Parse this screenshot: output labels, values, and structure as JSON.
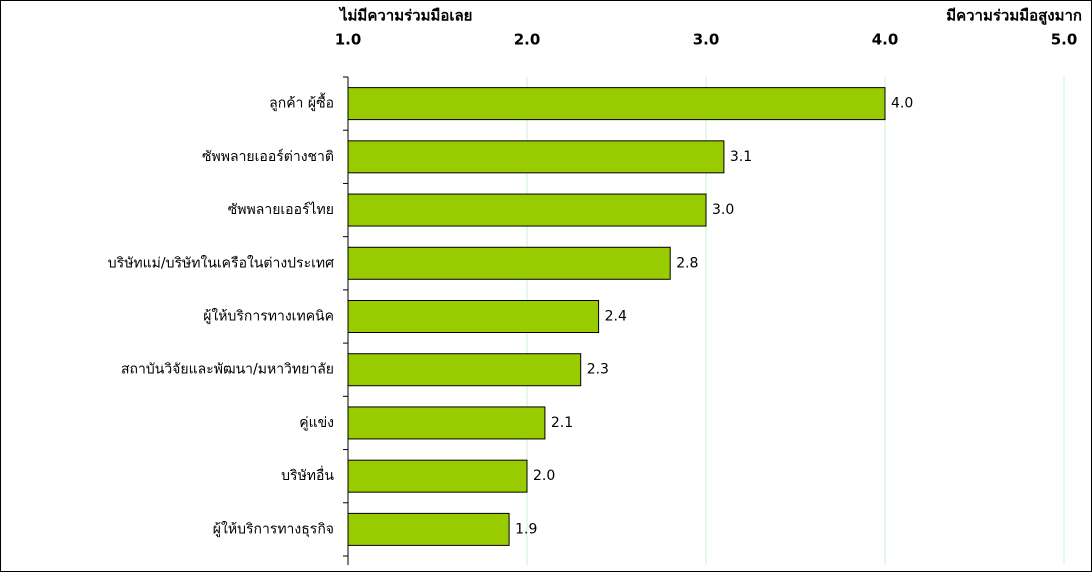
{
  "chart_data": {
    "type": "bar",
    "orientation": "horizontal",
    "x_label_left": "ไม่มีความร่วมมือเลย",
    "x_label_right": "มีความร่วมมือสูงมาก",
    "categories": [
      "ลูกค้า ผู้ซื้อ",
      "ซัพพลายเออร์ต่างชาติ",
      "ซัพพลายเออร์ไทย",
      "บริษัทแม่/บริษัทในเครือในต่างประเทศ",
      "ผู้ให้บริการทางเทคนิค",
      "สถาบันวิจัยและพัฒนา/มหาวิทยาลัย",
      "คู่แข่ง",
      "บริษัทอื่น",
      "ผู้ให้บริการทางธุรกิจ"
    ],
    "values": [
      4.0,
      3.1,
      3.0,
      2.8,
      2.4,
      2.3,
      2.1,
      2.0,
      1.9
    ],
    "value_labels": [
      "4.0",
      "3.1",
      "3.0",
      "2.8",
      "2.4",
      "2.3",
      "2.1",
      "2.0",
      "1.9"
    ],
    "color": "#99cc00",
    "grid_color": "#ccf0cc",
    "xlim": [
      1,
      5
    ],
    "xticks": [
      {
        "value": 1,
        "label": "1.0"
      },
      {
        "value": 2,
        "label": "2.0"
      },
      {
        "value": 3,
        "label": "3.0"
      },
      {
        "value": 4,
        "label": "4.0"
      },
      {
        "value": 5,
        "label": "5.0"
      }
    ],
    "grid": true
  }
}
